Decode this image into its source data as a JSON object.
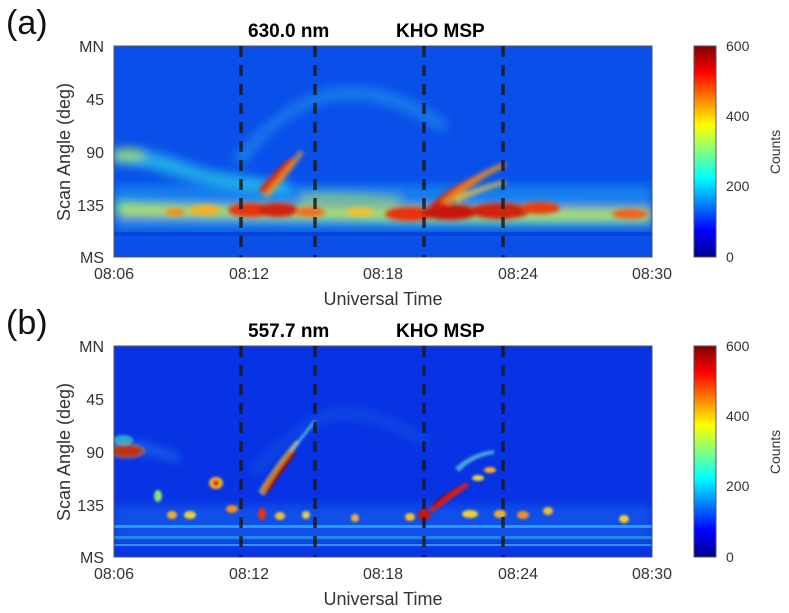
{
  "chart_data": [
    {
      "panel": "(a)",
      "type": "heatmap",
      "wavelength": "630.0 nm",
      "station": "KHO MSP",
      "xlabel": "Universal Time",
      "ylabel": "Scan Angle (deg)",
      "x_range": [
        "08:06",
        "08:30"
      ],
      "x_ticks": [
        "08:06",
        "08:12",
        "08:18",
        "08:24",
        "08:30"
      ],
      "y_range": [
        0,
        180
      ],
      "y_ticks": [
        {
          "value": 0,
          "label": "MN"
        },
        {
          "value": 45,
          "label": "45"
        },
        {
          "value": 90,
          "label": "90"
        },
        {
          "value": 135,
          "label": "135"
        },
        {
          "value": 180,
          "label": "MS"
        }
      ],
      "colorbar": {
        "label": "Counts",
        "min": 0,
        "max": 600,
        "ticks": [
          0,
          200,
          400,
          600
        ]
      },
      "dashed_lines_minutes": [
        6,
        9,
        14,
        17.4
      ]
    },
    {
      "panel": "(b)",
      "type": "heatmap",
      "wavelength": "557.7 nm",
      "station": "KHO MSP",
      "xlabel": "Universal Time",
      "ylabel": "Scan Angle (deg)",
      "x_range": [
        "08:06",
        "08:30"
      ],
      "x_ticks": [
        "08:06",
        "08:12",
        "08:18",
        "08:24",
        "08:30"
      ],
      "y_range": [
        0,
        180
      ],
      "y_ticks": [
        {
          "value": 0,
          "label": "MN"
        },
        {
          "value": 45,
          "label": "45"
        },
        {
          "value": 90,
          "label": "90"
        },
        {
          "value": 135,
          "label": "135"
        },
        {
          "value": 180,
          "label": "MS"
        }
      ],
      "colorbar": {
        "label": "Counts",
        "min": 0,
        "max": 600,
        "ticks": [
          0,
          200,
          400,
          600
        ]
      },
      "dashed_lines_minutes": [
        6,
        9,
        14,
        17.4
      ]
    }
  ]
}
